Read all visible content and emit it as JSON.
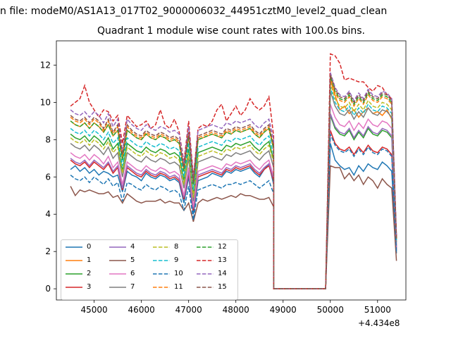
{
  "figure": {
    "suptitle": "n file: modeM0/AS1A13_017T02_9000006032_44951cztM0_level2_quad_clean",
    "offset_text": "+4.434e8"
  },
  "chart_data": {
    "type": "line",
    "title": "Quadrant 1 module wise count rates with 100.0s bins.",
    "xlabel": "",
    "ylabel": "",
    "x_offset": 443400000,
    "xlim": [
      44200,
      51600
    ],
    "ylim": [
      -0.6,
      13.3
    ],
    "xticks": [
      45000,
      46000,
      47000,
      48000,
      49000,
      50000,
      51000
    ],
    "yticks": [
      0,
      2,
      4,
      6,
      8,
      10,
      12
    ],
    "grid": false,
    "legend_position": "lower-left",
    "legend_columns": 4,
    "x_breaks": {
      "start": 44500,
      "step": 100,
      "gap_start": 48800,
      "gap_end": 49900,
      "end": 51300
    },
    "series": [
      {
        "name": "0",
        "color": "#1f77b4",
        "dash": "solid",
        "pre": [
          6.4,
          6.6,
          6.3,
          6.5,
          6.2,
          6.4,
          6.1,
          6.3,
          6.2,
          6.0,
          6.1,
          5.2,
          6.3,
          6.1,
          6.0,
          5.8,
          6.2,
          6.0,
          5.9,
          6.1,
          6.0,
          5.8,
          5.9,
          5.7,
          4.6,
          6.0,
          4.0,
          5.8,
          5.9,
          6.0,
          6.2,
          6.1,
          6.0,
          6.3,
          6.2,
          6.4,
          6.3,
          6.4,
          6.5,
          6.2,
          6.0,
          6.4,
          6.7,
          5.6
        ],
        "post": [
          7.8,
          6.9,
          6.6,
          6.4,
          6.5,
          6.1,
          6.6,
          6.3,
          6.7,
          6.5,
          6.4,
          6.8,
          6.6,
          6.3,
          1.9
        ]
      },
      {
        "name": "1",
        "color": "#ff7f0e",
        "dash": "solid",
        "pre": [
          9.0,
          8.8,
          8.7,
          8.9,
          8.6,
          8.9,
          8.7,
          8.4,
          8.8,
          8.2,
          8.5,
          6.9,
          8.5,
          8.3,
          8.1,
          8.0,
          8.3,
          8.1,
          8.0,
          8.2,
          8.1,
          7.9,
          8.0,
          7.8,
          6.3,
          8.2,
          5.6,
          8.0,
          8.1,
          8.2,
          8.3,
          8.2,
          8.1,
          8.4,
          8.3,
          8.5,
          8.4,
          8.5,
          8.6,
          8.3,
          8.1,
          8.4,
          8.6,
          7.5
        ],
        "post": [
          11.2,
          10.4,
          9.6,
          9.8,
          9.4,
          9.6,
          9.2,
          9.5,
          9.7,
          9.4,
          9.5,
          9.3,
          9.6,
          9.1,
          2.7
        ]
      },
      {
        "name": "2",
        "color": "#2ca02c",
        "dash": "solid",
        "pre": [
          8.3,
          8.1,
          8.0,
          8.2,
          7.9,
          8.2,
          8.0,
          7.7,
          8.1,
          7.5,
          7.8,
          6.3,
          7.8,
          7.6,
          7.4,
          7.3,
          7.6,
          7.4,
          7.3,
          7.5,
          7.4,
          7.2,
          7.3,
          7.1,
          5.8,
          7.5,
          5.1,
          7.3,
          7.4,
          7.5,
          7.6,
          7.5,
          7.4,
          7.7,
          7.6,
          7.8,
          7.7,
          7.8,
          7.9,
          7.6,
          7.4,
          7.7,
          7.9,
          6.9
        ],
        "post": [
          9.3,
          8.6,
          8.3,
          8.2,
          8.5,
          8.0,
          8.4,
          8.1,
          8.6,
          8.3,
          8.2,
          8.5,
          8.4,
          8.1,
          2.3
        ]
      },
      {
        "name": "3",
        "color": "#d62728",
        "dash": "solid",
        "pre": [
          6.9,
          6.7,
          6.6,
          6.8,
          6.5,
          6.8,
          6.6,
          6.4,
          6.7,
          6.2,
          6.5,
          5.3,
          6.5,
          6.3,
          6.1,
          6.0,
          6.3,
          6.1,
          6.0,
          6.2,
          6.1,
          5.9,
          6.0,
          5.8,
          4.8,
          6.2,
          4.2,
          6.0,
          6.1,
          6.2,
          6.3,
          6.2,
          6.1,
          6.4,
          6.3,
          6.5,
          6.4,
          6.5,
          6.6,
          6.3,
          6.1,
          6.4,
          6.6,
          5.8
        ],
        "post": [
          8.5,
          7.8,
          7.5,
          7.4,
          7.6,
          7.2,
          7.6,
          7.3,
          7.7,
          7.4,
          7.3,
          7.6,
          7.5,
          7.2,
          2.1
        ]
      },
      {
        "name": "4",
        "color": "#9467bd",
        "dash": "solid",
        "pre": [
          7.0,
          6.8,
          6.7,
          6.9,
          6.6,
          6.9,
          6.7,
          6.5,
          6.8,
          6.3,
          6.6,
          5.4,
          6.6,
          6.4,
          6.2,
          6.1,
          6.4,
          6.2,
          6.1,
          6.3,
          6.2,
          6.0,
          6.1,
          5.9,
          4.9,
          6.3,
          4.3,
          6.1,
          6.2,
          6.3,
          6.4,
          6.3,
          6.2,
          6.5,
          6.4,
          6.6,
          6.5,
          6.6,
          6.7,
          6.4,
          6.2,
          6.5,
          6.7,
          5.9
        ],
        "post": [
          9.4,
          8.7,
          8.4,
          8.3,
          8.6,
          8.1,
          8.5,
          8.2,
          8.7,
          8.4,
          8.3,
          8.6,
          8.5,
          8.2,
          2.2
        ]
      },
      {
        "name": "5",
        "color": "#8c564b",
        "dash": "solid",
        "pre": [
          5.5,
          5.0,
          5.3,
          5.2,
          5.3,
          5.2,
          5.1,
          5.1,
          5.2,
          4.9,
          5.0,
          4.6,
          5.1,
          4.9,
          4.7,
          4.6,
          4.7,
          4.7,
          4.7,
          4.8,
          4.6,
          4.7,
          4.6,
          4.6,
          4.2,
          4.6,
          3.6,
          4.6,
          4.8,
          4.7,
          4.8,
          4.9,
          4.8,
          4.9,
          5.0,
          4.9,
          5.1,
          5.0,
          5.0,
          4.9,
          4.8,
          4.8,
          4.9,
          4.4
        ],
        "post": [
          6.6,
          6.5,
          6.5,
          5.9,
          6.2,
          5.8,
          6.1,
          5.6,
          6.0,
          5.8,
          5.4,
          5.9,
          5.6,
          5.4,
          1.5
        ]
      },
      {
        "name": "6",
        "color": "#e377c2",
        "dash": "solid",
        "pre": [
          7.3,
          7.1,
          7.0,
          7.2,
          6.9,
          7.2,
          7.0,
          6.7,
          7.1,
          6.5,
          6.8,
          5.6,
          6.8,
          6.6,
          6.4,
          6.3,
          6.6,
          6.4,
          6.3,
          6.5,
          6.4,
          6.2,
          6.3,
          6.1,
          5.0,
          6.5,
          4.4,
          6.3,
          6.4,
          6.5,
          6.6,
          6.5,
          6.4,
          6.7,
          6.6,
          6.8,
          6.7,
          6.8,
          6.9,
          6.6,
          6.4,
          6.7,
          6.9,
          6.0
        ],
        "post": [
          9.9,
          9.2,
          8.8,
          8.7,
          9.0,
          8.5,
          8.9,
          8.6,
          9.1,
          8.8,
          8.7,
          9.0,
          8.9,
          8.6,
          2.3
        ]
      },
      {
        "name": "7",
        "color": "#7f7f7f",
        "dash": "solid",
        "pre": [
          7.8,
          7.6,
          7.5,
          7.7,
          7.4,
          7.7,
          7.5,
          7.2,
          7.6,
          7.0,
          7.3,
          6.0,
          7.3,
          7.1,
          6.9,
          6.8,
          7.1,
          6.9,
          6.8,
          7.0,
          6.9,
          6.7,
          6.8,
          6.6,
          5.4,
          7.0,
          4.7,
          6.8,
          6.9,
          7.0,
          7.1,
          7.0,
          6.9,
          7.2,
          7.1,
          7.3,
          7.2,
          7.3,
          7.4,
          7.1,
          6.9,
          7.2,
          7.4,
          6.5
        ],
        "post": [
          10.6,
          9.8,
          9.4,
          9.3,
          9.6,
          9.1,
          9.5,
          9.2,
          9.7,
          9.4,
          9.3,
          9.6,
          9.5,
          9.2,
          2.5
        ]
      },
      {
        "name": "8",
        "color": "#bcbd22",
        "dash": "dashed",
        "pre": [
          8.1,
          7.9,
          7.8,
          8.0,
          7.7,
          8.0,
          7.8,
          7.5,
          7.9,
          7.3,
          7.6,
          6.2,
          7.6,
          7.4,
          7.2,
          7.1,
          7.4,
          7.2,
          7.1,
          7.3,
          7.2,
          7.0,
          7.1,
          6.9,
          5.6,
          7.3,
          4.9,
          7.1,
          7.2,
          7.3,
          7.4,
          7.3,
          7.2,
          7.5,
          7.4,
          7.6,
          7.5,
          7.6,
          7.7,
          7.4,
          7.2,
          7.5,
          7.7,
          6.8
        ],
        "post": [
          11.0,
          10.2,
          9.8,
          9.7,
          10.0,
          9.5,
          9.9,
          9.6,
          10.1,
          9.8,
          9.7,
          10.0,
          9.9,
          9.6,
          2.6
        ]
      },
      {
        "name": "9",
        "color": "#17becf",
        "dash": "dashed",
        "pre": [
          8.6,
          8.4,
          8.3,
          8.5,
          8.2,
          8.5,
          8.3,
          8.0,
          8.4,
          7.8,
          8.1,
          6.6,
          8.1,
          7.9,
          7.7,
          7.6,
          7.9,
          7.7,
          7.6,
          7.8,
          7.7,
          7.5,
          7.6,
          7.4,
          6.0,
          7.8,
          5.3,
          7.6,
          7.7,
          7.8,
          7.9,
          7.8,
          7.7,
          8.0,
          7.9,
          8.1,
          8.0,
          8.1,
          8.2,
          7.9,
          7.7,
          8.0,
          8.2,
          7.2
        ],
        "post": [
          10.8,
          10.0,
          9.6,
          9.5,
          9.8,
          9.3,
          9.7,
          9.4,
          9.9,
          9.6,
          9.5,
          9.8,
          9.7,
          9.4,
          2.6
        ]
      },
      {
        "name": "10",
        "color": "#1f77b4",
        "dash": "dashed",
        "pre": [
          6.1,
          5.9,
          5.8,
          6.0,
          5.7,
          6.0,
          5.8,
          5.6,
          5.9,
          5.5,
          5.7,
          4.7,
          5.7,
          5.6,
          5.4,
          5.3,
          5.6,
          5.4,
          5.3,
          5.5,
          5.4,
          5.2,
          5.3,
          5.1,
          4.2,
          5.5,
          3.7,
          5.3,
          5.4,
          5.5,
          5.6,
          5.5,
          5.4,
          5.6,
          5.6,
          5.7,
          5.6,
          5.7,
          5.8,
          5.6,
          5.4,
          5.6,
          5.8,
          5.1
        ],
        "post": [
          8.3,
          7.7,
          7.4,
          7.3,
          7.5,
          7.1,
          7.5,
          7.2,
          7.6,
          7.3,
          7.2,
          7.5,
          7.4,
          7.1,
          2.0
        ]
      },
      {
        "name": "11",
        "color": "#ff7f0e",
        "dash": "dashed",
        "pre": [
          9.2,
          9.0,
          8.9,
          9.1,
          8.8,
          9.1,
          8.9,
          8.5,
          9.0,
          8.3,
          8.7,
          7.1,
          8.7,
          8.4,
          8.2,
          8.1,
          8.4,
          8.2,
          8.1,
          8.3,
          8.2,
          8.0,
          8.1,
          7.9,
          6.4,
          8.3,
          5.6,
          8.1,
          8.2,
          8.3,
          8.4,
          8.3,
          8.2,
          8.5,
          8.4,
          8.6,
          8.5,
          8.6,
          8.7,
          8.4,
          8.2,
          8.5,
          8.7,
          7.6
        ],
        "post": [
          11.3,
          10.5,
          10.1,
          10.0,
          10.3,
          9.8,
          10.2,
          9.9,
          10.4,
          10.1,
          10.0,
          10.3,
          10.2,
          9.9,
          2.7
        ]
      },
      {
        "name": "12",
        "color": "#2ca02c",
        "dash": "dashed",
        "pre": [
          9.0,
          8.8,
          8.7,
          8.9,
          8.6,
          8.9,
          8.7,
          8.4,
          8.8,
          8.2,
          8.5,
          6.9,
          8.5,
          8.3,
          8.1,
          8.0,
          8.3,
          8.1,
          8.0,
          8.2,
          8.1,
          7.9,
          8.0,
          7.8,
          6.3,
          8.2,
          5.6,
          8.0,
          8.1,
          8.2,
          8.3,
          8.2,
          8.1,
          8.4,
          8.3,
          8.5,
          8.4,
          8.5,
          8.6,
          8.3,
          8.1,
          8.4,
          8.6,
          7.5
        ],
        "post": [
          11.4,
          10.6,
          10.2,
          10.1,
          10.4,
          9.9,
          10.3,
          10.0,
          10.5,
          10.2,
          10.1,
          10.4,
          10.3,
          10.0,
          2.7
        ]
      },
      {
        "name": "13",
        "color": "#d62728",
        "dash": "dashed",
        "pre": [
          9.8,
          10.0,
          10.2,
          10.9,
          10.0,
          9.6,
          9.2,
          9.6,
          9.5,
          9.0,
          9.3,
          7.8,
          9.3,
          9.0,
          8.7,
          8.8,
          9.0,
          8.6,
          8.8,
          9.6,
          8.8,
          8.6,
          9.1,
          8.4,
          6.8,
          9.0,
          6.0,
          8.6,
          8.8,
          8.7,
          9.0,
          9.6,
          9.9,
          9.0,
          9.4,
          9.8,
          9.3,
          9.6,
          10.2,
          9.8,
          9.6,
          9.8,
          10.3,
          8.2
        ],
        "post": [
          12.6,
          12.5,
          12.1,
          11.2,
          11.3,
          11.2,
          11.1,
          11.1,
          10.8,
          10.6,
          10.9,
          10.8,
          10.4,
          10.2,
          2.8
        ]
      },
      {
        "name": "14",
        "color": "#9467bd",
        "dash": "dashed",
        "pre": [
          9.6,
          9.4,
          9.3,
          9.5,
          9.2,
          9.5,
          9.3,
          8.9,
          9.4,
          8.7,
          9.1,
          7.4,
          9.1,
          8.8,
          8.6,
          8.5,
          8.8,
          8.6,
          8.5,
          8.7,
          8.6,
          8.4,
          8.5,
          8.3,
          6.7,
          8.7,
          5.9,
          8.5,
          8.6,
          8.7,
          8.8,
          8.7,
          8.6,
          8.9,
          8.8,
          9.0,
          8.9,
          9.0,
          9.1,
          8.8,
          8.6,
          8.9,
          9.1,
          8.0
        ],
        "post": [
          11.6,
          10.8,
          10.4,
          10.3,
          10.6,
          10.1,
          10.5,
          10.2,
          10.7,
          10.4,
          10.3,
          10.6,
          10.5,
          10.2,
          2.8
        ]
      },
      {
        "name": "15",
        "color": "#8c564b",
        "dash": "dashed",
        "pre": [
          9.3,
          9.1,
          9.0,
          9.2,
          8.9,
          9.2,
          9.0,
          8.6,
          9.1,
          8.4,
          8.8,
          7.2,
          8.8,
          8.5,
          8.3,
          8.2,
          8.5,
          8.3,
          8.2,
          8.4,
          8.3,
          8.1,
          8.2,
          8.0,
          6.5,
          8.4,
          5.7,
          8.2,
          8.3,
          8.4,
          8.5,
          8.4,
          8.3,
          8.6,
          8.5,
          8.7,
          8.6,
          8.7,
          8.8,
          8.5,
          8.3,
          8.6,
          8.8,
          7.7
        ],
        "post": [
          11.5,
          10.7,
          10.3,
          10.2,
          10.5,
          10.0,
          10.4,
          10.1,
          10.6,
          10.3,
          10.2,
          10.5,
          10.4,
          10.1,
          2.7
        ]
      }
    ]
  }
}
